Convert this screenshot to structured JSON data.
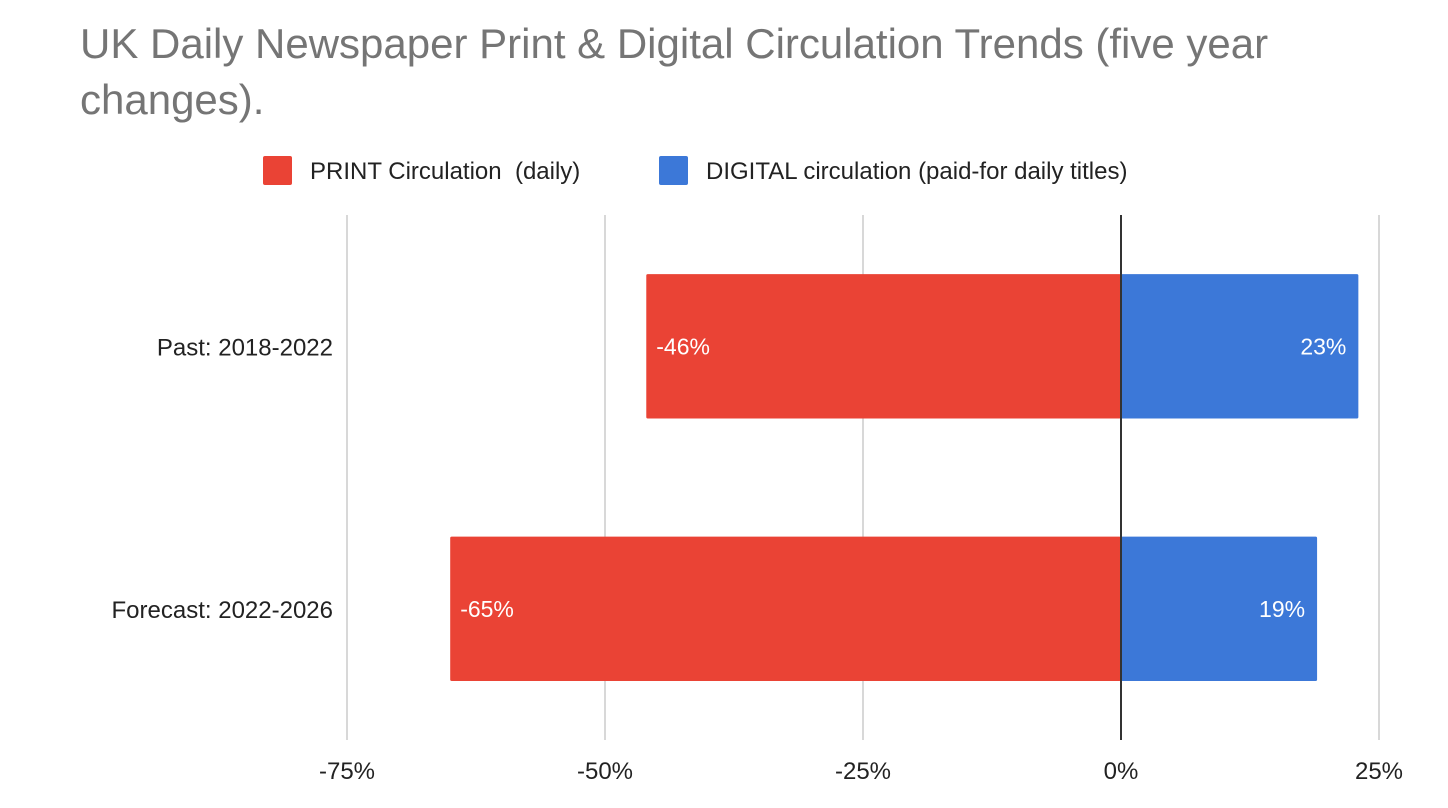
{
  "chart_data": {
    "type": "bar",
    "orientation": "horizontal",
    "stacked": true,
    "title_lines": [
      "UK Daily Newspaper Print & Digital Circulation Trends (five year",
      "changes)."
    ],
    "categories": [
      "Past: 2018-2022",
      "Forecast: 2022-2026"
    ],
    "series": [
      {
        "name": "PRINT Circulation  (daily)",
        "color": "#ea4335",
        "values": [
          -46,
          -65
        ],
        "labels": [
          "-46%",
          "-65%"
        ]
      },
      {
        "name": "DIGITAL circulation (paid-for daily titles)",
        "color": "#3c78d8",
        "values": [
          23,
          19
        ],
        "labels": [
          "23%",
          "19%"
        ]
      }
    ],
    "xlim": [
      -75,
      25
    ],
    "xticks": [
      -75,
      -50,
      -25,
      0,
      25
    ],
    "xtick_labels": [
      "-75%",
      "-50%",
      "-25%",
      "0%",
      "25%"
    ],
    "legend_position": "top",
    "grid": true
  }
}
